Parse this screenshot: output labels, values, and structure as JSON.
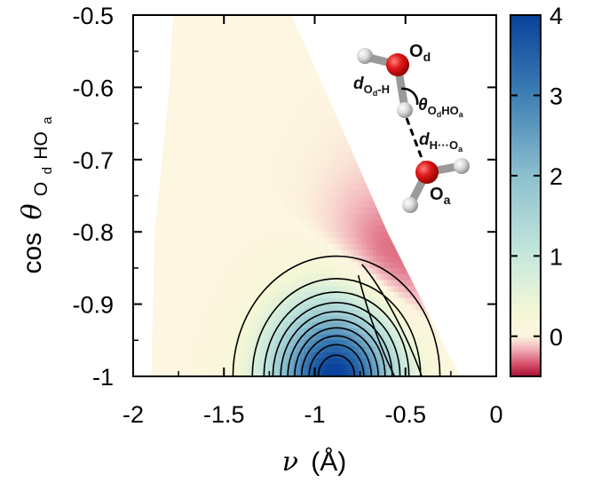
{
  "chart_data": {
    "type": "heatmap",
    "title": "",
    "xlabel": {
      "symbol": "ν",
      "unit": "(Å)"
    },
    "ylabel": {
      "prefix": "cos",
      "symbol": "θ",
      "sub": "O",
      "subsub": "d",
      "tail": "HO",
      "tailsub": "a"
    },
    "xlim": [
      -2,
      0
    ],
    "ylim": [
      -1,
      -0.5
    ],
    "x_ticks": [
      {
        "value": -2,
        "label": "-2"
      },
      {
        "value": -1.5,
        "label": "-1.5"
      },
      {
        "value": -1,
        "label": "-1"
      },
      {
        "value": -0.5,
        "label": "-0.5"
      },
      {
        "value": 0,
        "label": "0"
      }
    ],
    "y_ticks": [
      {
        "value": -0.5,
        "label": "-0.5"
      },
      {
        "value": -0.6,
        "label": "-0.6"
      },
      {
        "value": -0.7,
        "label": "-0.7"
      },
      {
        "value": -0.8,
        "label": "-0.8"
      },
      {
        "value": -0.9,
        "label": "-0.9"
      },
      {
        "value": -1,
        "label": "-1"
      }
    ],
    "colorbar": {
      "range": [
        -0.5,
        4
      ],
      "ticks": [
        {
          "value": 4,
          "label": "4"
        },
        {
          "value": 3,
          "label": "3"
        },
        {
          "value": 2,
          "label": "2"
        },
        {
          "value": 1,
          "label": "1"
        },
        {
          "value": 0,
          "label": "0"
        }
      ],
      "colors": [
        {
          "value": -0.5,
          "color": "#a50f35"
        },
        {
          "value": -0.35,
          "color": "#d6506a"
        },
        {
          "value": -0.15,
          "color": "#f2b6bd"
        },
        {
          "value": 0,
          "color": "#fdf6e0"
        },
        {
          "value": 0.3,
          "color": "#f4f7d6"
        },
        {
          "value": 1,
          "color": "#c6e8dc"
        },
        {
          "value": 2,
          "color": "#8cbfce"
        },
        {
          "value": 3,
          "color": "#3e7fb4"
        },
        {
          "value": 4,
          "color": "#08429a"
        }
      ]
    },
    "valid_region": {
      "left_boundary": [
        [
          -1.9,
          -1
        ],
        [
          -1.88,
          -0.8
        ],
        [
          -1.8,
          -0.6
        ],
        [
          -1.78,
          -0.5
        ]
      ],
      "right_boundary": [
        [
          -0.2,
          -1
        ],
        [
          -0.6,
          -0.8
        ],
        [
          -0.95,
          -0.6
        ],
        [
          -1.13,
          -0.5
        ]
      ]
    },
    "density_peaks": [
      {
        "name": "bound",
        "x": -0.88,
        "y": -1.0,
        "amplitude": 4.2,
        "sx": 0.24,
        "sy": 0.07
      },
      {
        "name": "ridge",
        "x": -0.62,
        "y": -0.9,
        "amplitude": -0.5,
        "sx": 0.22,
        "sy": 0.1
      }
    ],
    "contour_levels": [
      0.25,
      0.65,
      1.05,
      1.45,
      1.85,
      2.25,
      2.65,
      3.05,
      3.45,
      3.85
    ],
    "inset": {
      "donor_label": {
        "base": "O",
        "sub": "d"
      },
      "acceptor_label": {
        "base": "O",
        "sub": "a"
      },
      "donor_distance": {
        "base": "d",
        "sub": "O",
        "subsub": "d",
        "tail": "-H"
      },
      "hbond_distance": {
        "base": "d",
        "sub": "H···O",
        "subsub": "a"
      },
      "angle": {
        "base": "θ",
        "sub": "O",
        "subsub": "d",
        "tail": "HO",
        "tailsub": "a"
      }
    }
  }
}
